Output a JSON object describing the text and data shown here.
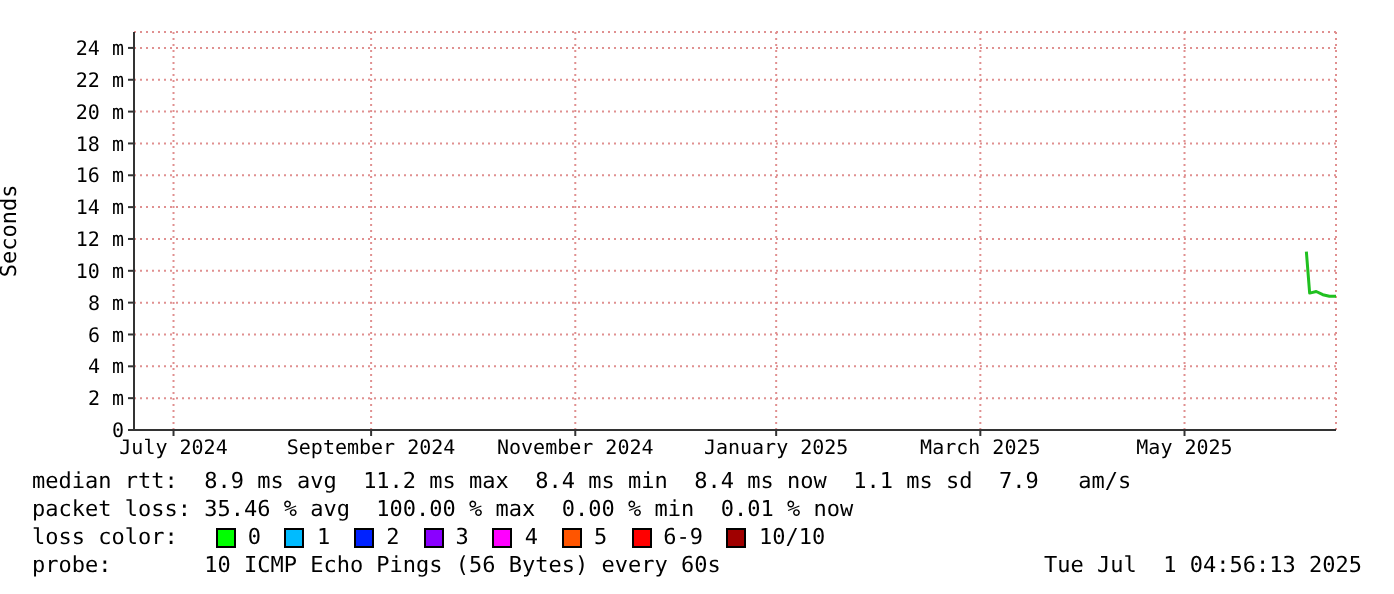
{
  "chart_data": {
    "type": "line",
    "ylabel": "Seconds",
    "xlim": [
      "2024-07-01",
      "2025-07-01"
    ],
    "xticks": [
      {
        "value": "2024-07-13",
        "label": "July 2024"
      },
      {
        "value": "2024-09-11",
        "label": "September 2024"
      },
      {
        "value": "2024-11-12",
        "label": "November 2024"
      },
      {
        "value": "2025-01-12",
        "label": "January 2025"
      },
      {
        "value": "2025-03-15",
        "label": "March 2025"
      },
      {
        "value": "2025-05-16",
        "label": "May 2025"
      }
    ],
    "ylim": [
      0,
      25
    ],
    "yticks": [
      0,
      {
        "value": 2,
        "label": "2 m"
      },
      {
        "value": 4,
        "label": "4 m"
      },
      {
        "value": 6,
        "label": "6 m"
      },
      {
        "value": 8,
        "label": "8 m"
      },
      {
        "value": 10,
        "label": "10 m"
      },
      {
        "value": 12,
        "label": "12 m"
      },
      {
        "value": 14,
        "label": "14 m"
      },
      {
        "value": 16,
        "label": "16 m"
      },
      {
        "value": 18,
        "label": "18 m"
      },
      {
        "value": 20,
        "label": "20 m"
      },
      {
        "value": 22,
        "label": "22 m"
      },
      {
        "value": 24,
        "label": "24 m"
      }
    ],
    "x": [
      "2025-06-22",
      "2025-06-23",
      "2025-06-25",
      "2025-06-27",
      "2025-06-29",
      "2025-07-01"
    ],
    "series": [
      {
        "color": "#20c020",
        "values": [
          11.2,
          8.6,
          8.7,
          8.5,
          8.4,
          8.4
        ]
      }
    ],
    "grid": true,
    "marker": "none",
    "line_style": "solid",
    "annotations": [
      "median rtt:  8.9 ms avg  11.2 ms max  8.4 ms min  8.4 ms now  1.1 ms sd  7.9   am/s",
      "packet loss: 35.46 % avg  100.00 % max  0.00 % min  0.01 % now",
      "loss color:",
      "0",
      "1",
      "2",
      "3",
      "4",
      "5",
      "6-9",
      "10/10",
      "probe:       10 ICMP Echo Pings (56 Bytes) every 60s",
      "Tue Jul  1 04:56:13 2025"
    ]
  }
}
